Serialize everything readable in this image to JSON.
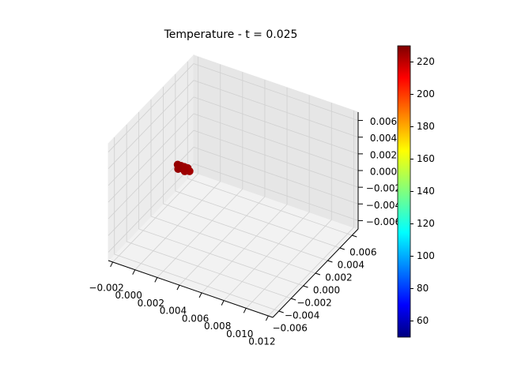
{
  "chart_data": {
    "type": "scatter3d",
    "title": "Temperature - t = 0.025",
    "x": [
      0.0,
      0.0003,
      0.0006,
      0.0009,
      0.0,
      0.0003,
      0.0006,
      0.0009,
      0.00015,
      0.00075
    ],
    "y": [
      0.0,
      0.0,
      0.0,
      0.0,
      0.0003,
      0.0003,
      0.0003,
      0.0003,
      -0.0002,
      -0.0002
    ],
    "z": [
      0.0003,
      0.0003,
      0.0003,
      0.0003,
      -0.0003,
      -0.0003,
      -0.0003,
      -0.0003,
      0.0,
      0.0
    ],
    "values": [
      226,
      226,
      225,
      225,
      226,
      225,
      225,
      224,
      226,
      225
    ],
    "colormap": "jet",
    "clim": [
      50,
      230
    ],
    "cticks": [
      60,
      80,
      100,
      120,
      140,
      160,
      180,
      200,
      220
    ],
    "xlim": [
      -0.0024,
      0.0124
    ],
    "ylim": [
      -0.007,
      0.007
    ],
    "zlim": [
      -0.007,
      0.007
    ],
    "xticks": [
      {
        "value": -0.002,
        "label": "−0.002"
      },
      {
        "value": 0,
        "label": "0.000"
      },
      {
        "value": 0.002,
        "label": "0.002"
      },
      {
        "value": 0.004,
        "label": "0.004"
      },
      {
        "value": 0.006,
        "label": "0.006"
      },
      {
        "value": 0.008,
        "label": "0.008"
      },
      {
        "value": 0.01,
        "label": "0.010"
      },
      {
        "value": 0.012,
        "label": "0.012"
      }
    ],
    "yticks": [
      {
        "value": -0.006,
        "label": "−0.006"
      },
      {
        "value": -0.004,
        "label": "−0.004"
      },
      {
        "value": -0.002,
        "label": "−0.002"
      },
      {
        "value": 0,
        "label": "0.000"
      },
      {
        "value": 0.002,
        "label": "0.002"
      },
      {
        "value": 0.004,
        "label": "0.004"
      },
      {
        "value": 0.006,
        "label": "0.006"
      }
    ],
    "zticks": [
      {
        "value": -0.006,
        "label": "−0.006"
      },
      {
        "value": -0.004,
        "label": "−0.004"
      },
      {
        "value": -0.002,
        "label": "−0.002"
      },
      {
        "value": 0,
        "label": "0.000"
      },
      {
        "value": 0.002,
        "label": "0.002"
      },
      {
        "value": 0.004,
        "label": "0.004"
      },
      {
        "value": 0.006,
        "label": "0.006"
      }
    ],
    "grid": true
  }
}
